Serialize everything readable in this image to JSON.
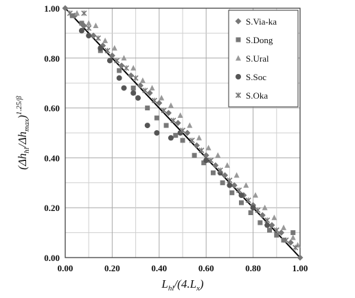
{
  "chart_data": {
    "type": "scatter",
    "xlabel": "Lhl/(4.Lx)",
    "ylabel": "(Δhhl/Δhmax)1.25/β",
    "xlim": [
      0,
      1
    ],
    "ylim": [
      0,
      1
    ],
    "xticks": [
      "0.00",
      "0.20",
      "0.40",
      "0.60",
      "0.80",
      "1.00"
    ],
    "yticks": [
      "0.00",
      "0.20",
      "0.40",
      "0.60",
      "0.80",
      "1.00"
    ],
    "grid": true,
    "legend_position": "top-right",
    "reference_line": {
      "x": [
        0,
        1
      ],
      "y": [
        1,
        0
      ]
    },
    "series": [
      {
        "name": "S.Via-ka",
        "marker": "diamond",
        "color": "#777777",
        "points": [
          [
            0.0,
            1.0
          ],
          [
            0.04,
            0.97
          ],
          [
            0.08,
            0.93
          ],
          [
            0.12,
            0.89
          ],
          [
            0.16,
            0.85
          ],
          [
            0.2,
            0.81
          ],
          [
            0.24,
            0.77
          ],
          [
            0.28,
            0.73
          ],
          [
            0.32,
            0.69
          ],
          [
            0.36,
            0.66
          ],
          [
            0.4,
            0.62
          ],
          [
            0.44,
            0.58
          ],
          [
            0.48,
            0.54
          ],
          [
            0.52,
            0.5
          ],
          [
            0.56,
            0.45
          ],
          [
            0.6,
            0.41
          ],
          [
            0.64,
            0.37
          ],
          [
            0.68,
            0.33
          ],
          [
            0.72,
            0.29
          ],
          [
            0.76,
            0.25
          ],
          [
            0.8,
            0.21
          ],
          [
            0.84,
            0.17
          ],
          [
            0.88,
            0.13
          ],
          [
            0.92,
            0.1
          ],
          [
            0.96,
            0.06
          ],
          [
            1.0,
            0.0
          ]
        ]
      },
      {
        "name": "S.Dong",
        "marker": "square",
        "color": "#777777",
        "points": [
          [
            0.03,
            0.97
          ],
          [
            0.07,
            0.94
          ],
          [
            0.15,
            0.83
          ],
          [
            0.23,
            0.75
          ],
          [
            0.29,
            0.68
          ],
          [
            0.35,
            0.6
          ],
          [
            0.39,
            0.56
          ],
          [
            0.43,
            0.53
          ],
          [
            0.47,
            0.49
          ],
          [
            0.5,
            0.47
          ],
          [
            0.55,
            0.41
          ],
          [
            0.59,
            0.38
          ],
          [
            0.63,
            0.34
          ],
          [
            0.67,
            0.3
          ],
          [
            0.71,
            0.26
          ],
          [
            0.75,
            0.22
          ],
          [
            0.79,
            0.18
          ],
          [
            0.83,
            0.14
          ],
          [
            0.87,
            0.11
          ],
          [
            0.9,
            0.09
          ],
          [
            0.93,
            0.07
          ],
          [
            0.97,
            0.1
          ]
        ]
      },
      {
        "name": "S.Ural",
        "marker": "triangle",
        "color": "#999999",
        "points": [
          [
            0.05,
            0.98
          ],
          [
            0.1,
            0.94
          ],
          [
            0.13,
            0.93
          ],
          [
            0.17,
            0.87
          ],
          [
            0.21,
            0.84
          ],
          [
            0.25,
            0.8
          ],
          [
            0.29,
            0.76
          ],
          [
            0.33,
            0.71
          ],
          [
            0.37,
            0.68
          ],
          [
            0.41,
            0.64
          ],
          [
            0.45,
            0.61
          ],
          [
            0.49,
            0.57
          ],
          [
            0.53,
            0.53
          ],
          [
            0.57,
            0.48
          ],
          [
            0.61,
            0.44
          ],
          [
            0.65,
            0.41
          ],
          [
            0.69,
            0.37
          ],
          [
            0.73,
            0.33
          ],
          [
            0.77,
            0.29
          ],
          [
            0.81,
            0.25
          ],
          [
            0.85,
            0.2
          ],
          [
            0.89,
            0.16
          ],
          [
            0.93,
            0.12
          ],
          [
            0.97,
            0.08
          ],
          [
            0.99,
            0.05
          ]
        ]
      },
      {
        "name": "S.Soc",
        "marker": "circle",
        "color": "#555555",
        "points": [
          [
            0.07,
            0.91
          ],
          [
            0.1,
            0.89
          ],
          [
            0.15,
            0.84
          ],
          [
            0.19,
            0.79
          ],
          [
            0.23,
            0.72
          ],
          [
            0.25,
            0.68
          ],
          [
            0.29,
            0.66
          ],
          [
            0.31,
            0.64
          ],
          [
            0.35,
            0.53
          ],
          [
            0.39,
            0.5
          ],
          [
            0.45,
            0.48
          ],
          [
            0.49,
            0.5
          ],
          [
            0.6,
            0.39
          ],
          [
            0.66,
            0.34
          ],
          [
            0.7,
            0.29
          ],
          [
            0.75,
            0.25
          ],
          [
            0.8,
            0.2
          ],
          [
            0.86,
            0.13
          ]
        ]
      },
      {
        "name": "S.Oka",
        "marker": "star",
        "color": "#777777",
        "points": [
          [
            0.02,
            0.98
          ],
          [
            0.08,
            0.98
          ],
          [
            0.1,
            0.92
          ],
          [
            0.14,
            0.88
          ],
          [
            0.18,
            0.83
          ],
          [
            0.22,
            0.79
          ],
          [
            0.26,
            0.76
          ],
          [
            0.3,
            0.72
          ],
          [
            0.34,
            0.67
          ],
          [
            0.38,
            0.63
          ],
          [
            0.42,
            0.59
          ],
          [
            0.46,
            0.55
          ],
          [
            0.5,
            0.51
          ],
          [
            0.54,
            0.47
          ],
          [
            0.58,
            0.43
          ],
          [
            0.62,
            0.39
          ],
          [
            0.66,
            0.35
          ],
          [
            0.7,
            0.31
          ],
          [
            0.74,
            0.27
          ],
          [
            0.78,
            0.23
          ],
          [
            0.82,
            0.19
          ],
          [
            0.86,
            0.15
          ],
          [
            0.9,
            0.11
          ],
          [
            0.94,
            0.07
          ],
          [
            0.98,
            0.04
          ]
        ]
      }
    ]
  }
}
